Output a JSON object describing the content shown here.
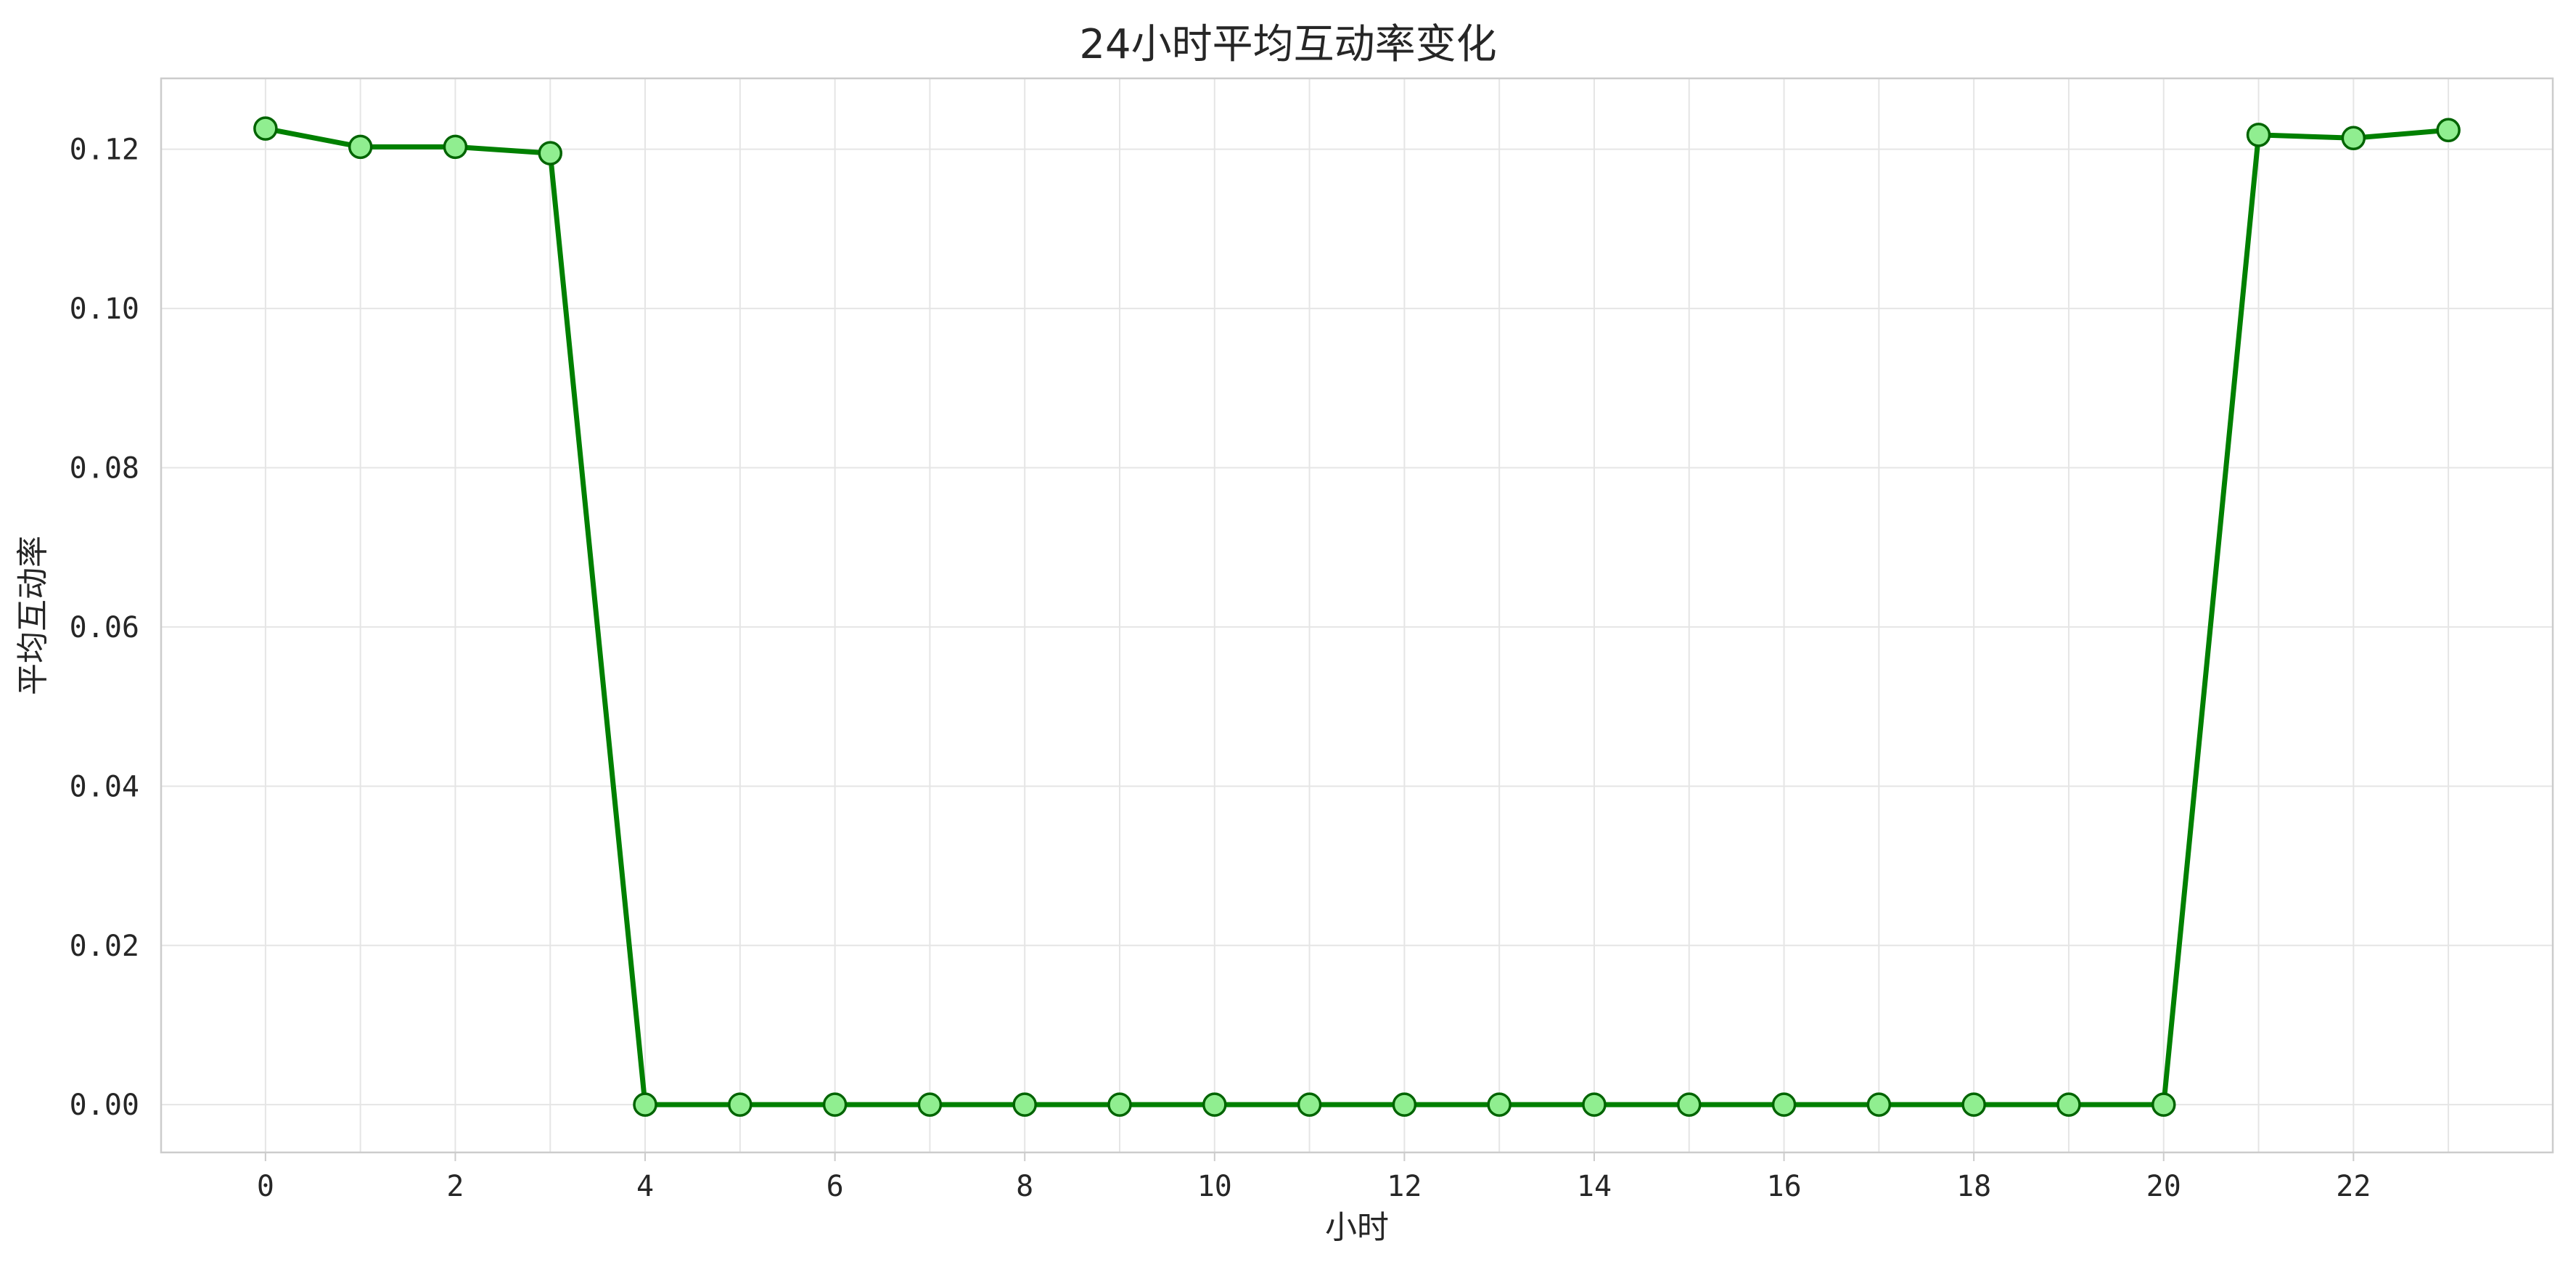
{
  "chart_data": {
    "type": "line",
    "title": "24小时平均互动率变化",
    "xlabel": "小时",
    "ylabel": "平均互动率",
    "x": [
      0,
      1,
      2,
      3,
      4,
      5,
      6,
      7,
      8,
      9,
      10,
      11,
      12,
      13,
      14,
      15,
      16,
      17,
      18,
      19,
      20,
      21,
      22,
      23
    ],
    "series": [
      {
        "values": [
          0.1226,
          0.1203,
          0.1203,
          0.1195,
          0,
          0,
          0,
          0,
          0,
          0,
          0,
          0,
          0,
          0,
          0,
          0,
          0,
          0,
          0,
          0,
          0,
          0.1218,
          0.1214,
          0.1224
        ]
      }
    ],
    "xlim": [
      -1.1,
      24.1
    ],
    "ylim": [
      -0.006,
      0.1289
    ],
    "xticks": [
      0,
      2,
      4,
      6,
      8,
      10,
      12,
      14,
      16,
      18,
      20,
      22
    ],
    "yticks": [
      0.0,
      0.02,
      0.04,
      0.06,
      0.08,
      0.1,
      0.12
    ],
    "ytick_labels": [
      "0.00",
      "0.02",
      "0.04",
      "0.06",
      "0.08",
      "0.10",
      "0.12"
    ],
    "xtick_labels": [
      "0",
      "2",
      "4",
      "6",
      "8",
      "10",
      "12",
      "14",
      "16",
      "18",
      "20",
      "22"
    ],
    "grid": true,
    "legend": "none",
    "colors": {
      "line": "#008000",
      "marker_fill": "#90ee90",
      "marker_edge": "#006400"
    }
  }
}
